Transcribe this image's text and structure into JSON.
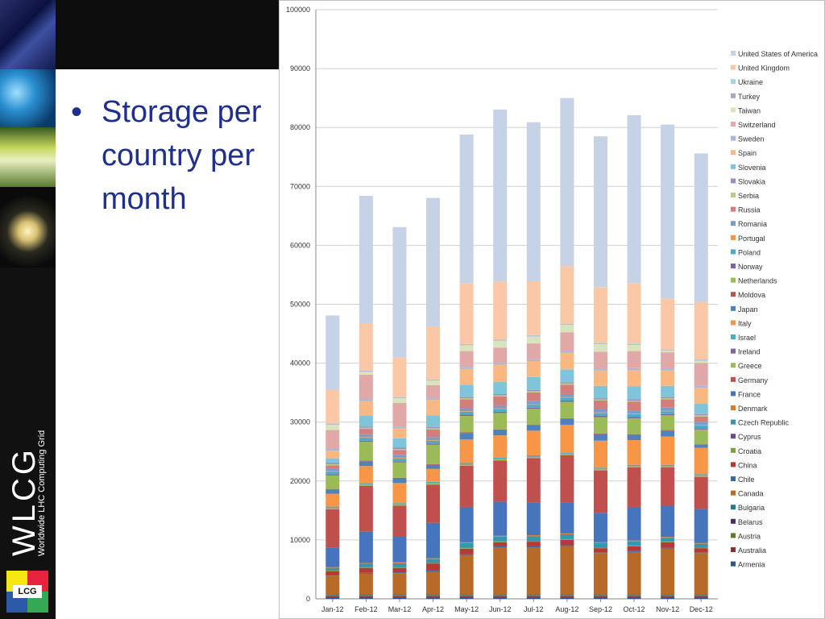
{
  "slide": {
    "bullet": "•",
    "title_lines": [
      "Storage per",
      "country per",
      "month"
    ]
  },
  "branding": {
    "wlcg": "WLCG",
    "wlcg_sub": "Worldwide LHC Computing Grid",
    "lcg": "LCG"
  },
  "chart_data": {
    "type": "bar",
    "stacked": true,
    "categories": [
      "Jan-12",
      "Feb-12",
      "Mar-12",
      "Apr-12",
      "May-12",
      "Jun-12",
      "Jul-12",
      "Aug-12",
      "Sep-12",
      "Oct-12",
      "Nov-12",
      "Dec-12"
    ],
    "yticks": [
      0,
      10000,
      20000,
      30000,
      40000,
      50000,
      60000,
      70000,
      80000,
      90000,
      100000
    ],
    "ylim": [
      0,
      100000
    ],
    "grid": true,
    "legend_position": "right",
    "series": [
      {
        "name": "Armenia",
        "color": "#2e5687",
        "values": [
          300,
          300,
          300,
          300,
          300,
          300,
          300,
          300,
          300,
          300,
          300,
          300
        ]
      },
      {
        "name": "Australia",
        "color": "#8c2e2c",
        "values": [
          200,
          200,
          200,
          200,
          200,
          200,
          200,
          200,
          200,
          200,
          200,
          200
        ]
      },
      {
        "name": "Austria",
        "color": "#5f7a2b",
        "values": [
          100,
          100,
          100,
          100,
          100,
          100,
          100,
          100,
          100,
          100,
          100,
          100
        ]
      },
      {
        "name": "Belarus",
        "color": "#4a2f66",
        "values": [
          50,
          50,
          50,
          50,
          50,
          50,
          50,
          50,
          50,
          50,
          50,
          50
        ]
      },
      {
        "name": "Bulgaria",
        "color": "#257a8c",
        "values": [
          100,
          100,
          100,
          100,
          100,
          100,
          100,
          100,
          100,
          100,
          100,
          100
        ]
      },
      {
        "name": "Canada",
        "color": "#b86a28",
        "values": [
          3200,
          3500,
          3600,
          3900,
          6700,
          8000,
          8000,
          8200,
          7000,
          7200,
          7800,
          7000
        ]
      },
      {
        "name": "Chile",
        "color": "#3a6aa6",
        "values": [
          150,
          150,
          150,
          150,
          150,
          150,
          150,
          150,
          150,
          150,
          150,
          150
        ]
      },
      {
        "name": "China",
        "color": "#b53a35",
        "values": [
          600,
          800,
          700,
          1200,
          900,
          700,
          800,
          900,
          700,
          800,
          900,
          700
        ]
      },
      {
        "name": "Croatia",
        "color": "#7fa23a",
        "values": [
          100,
          100,
          100,
          100,
          100,
          100,
          100,
          100,
          100,
          100,
          100,
          100
        ]
      },
      {
        "name": "Cyprus",
        "color": "#6a4a91",
        "values": [
          50,
          50,
          50,
          50,
          50,
          50,
          50,
          50,
          50,
          50,
          50,
          50
        ]
      },
      {
        "name": "Czech Republic",
        "color": "#3497ae",
        "values": [
          400,
          600,
          700,
          600,
          800,
          800,
          800,
          800,
          700,
          700,
          600,
          600
        ]
      },
      {
        "name": "Denmark",
        "color": "#e07a2a",
        "values": [
          150,
          150,
          150,
          150,
          150,
          150,
          150,
          150,
          150,
          150,
          150,
          150
        ]
      },
      {
        "name": "France",
        "color": "#4675bd",
        "values": [
          3300,
          5300,
          4400,
          6000,
          6000,
          5800,
          5600,
          5300,
          5000,
          5700,
          5300,
          5700
        ]
      },
      {
        "name": "Germany",
        "color": "#c0504d",
        "values": [
          6500,
          7800,
          5200,
          6500,
          7000,
          7000,
          7500,
          8000,
          7200,
          6700,
          6500,
          5500
        ]
      },
      {
        "name": "Greece",
        "color": "#9bbb59",
        "values": [
          200,
          200,
          200,
          200,
          200,
          200,
          200,
          200,
          200,
          200,
          200,
          200
        ]
      },
      {
        "name": "Ireland",
        "color": "#8064a2",
        "values": [
          50,
          50,
          50,
          50,
          50,
          50,
          50,
          50,
          50,
          50,
          50,
          50
        ]
      },
      {
        "name": "Israel",
        "color": "#4bacc6",
        "values": [
          200,
          200,
          200,
          200,
          200,
          200,
          200,
          200,
          200,
          200,
          200,
          200
        ]
      },
      {
        "name": "Italy",
        "color": "#f79646",
        "values": [
          2200,
          2900,
          3400,
          2200,
          4000,
          3800,
          4200,
          4700,
          4600,
          4200,
          4800,
          4500
        ]
      },
      {
        "name": "Japan",
        "color": "#4f81bd",
        "values": [
          700,
          800,
          800,
          700,
          1100,
          900,
          900,
          1000,
          1100,
          900,
          1000,
          500
        ]
      },
      {
        "name": "Moldova",
        "color": "#c0504d",
        "values": [
          100,
          100,
          100,
          100,
          100,
          100,
          100,
          100,
          100,
          100,
          100,
          100
        ]
      },
      {
        "name": "Netherlands",
        "color": "#9bbb59",
        "values": [
          2300,
          3200,
          2600,
          3300,
          2800,
          2800,
          2700,
          2800,
          2800,
          2700,
          2500,
          2500
        ]
      },
      {
        "name": "Norway",
        "color": "#8064a2",
        "values": [
          200,
          200,
          200,
          200,
          200,
          200,
          200,
          200,
          200,
          200,
          200,
          200
        ]
      },
      {
        "name": "Poland",
        "color": "#4bacc6",
        "values": [
          400,
          500,
          500,
          500,
          500,
          500,
          500,
          500,
          500,
          500,
          500,
          500
        ]
      },
      {
        "name": "Portugal",
        "color": "#f79646",
        "values": [
          100,
          100,
          100,
          100,
          100,
          100,
          100,
          100,
          100,
          100,
          100,
          100
        ]
      },
      {
        "name": "Romania",
        "color": "#7a9ccc",
        "values": [
          500,
          500,
          500,
          500,
          500,
          500,
          500,
          500,
          500,
          500,
          500,
          500
        ]
      },
      {
        "name": "Russia",
        "color": "#d47e7c",
        "values": [
          500,
          900,
          800,
          1300,
          1500,
          1500,
          1500,
          1600,
          1500,
          1500,
          1400,
          900
        ]
      },
      {
        "name": "Serbia",
        "color": "#b5cd85",
        "values": [
          200,
          200,
          200,
          200,
          200,
          200,
          200,
          200,
          200,
          200,
          200,
          200
        ]
      },
      {
        "name": "Slovakia",
        "color": "#9f8bbd",
        "values": [
          200,
          200,
          200,
          200,
          200,
          200,
          200,
          200,
          200,
          200,
          200,
          200
        ]
      },
      {
        "name": "Slovenia",
        "color": "#7fc4d8",
        "values": [
          800,
          1800,
          1600,
          2000,
          2100,
          2100,
          2200,
          2200,
          2100,
          2200,
          1900,
          1800
        ]
      },
      {
        "name": "Spain",
        "color": "#f9b782",
        "values": [
          1300,
          2500,
          1700,
          2600,
          2700,
          2900,
          2700,
          2800,
          2600,
          2800,
          2600,
          2700
        ]
      },
      {
        "name": "Sweden",
        "color": "#a5b9dc",
        "values": [
          300,
          300,
          300,
          300,
          300,
          300,
          300,
          300,
          300,
          300,
          300,
          300
        ]
      },
      {
        "name": "Switzerland",
        "color": "#e0a8a6",
        "values": [
          3200,
          4200,
          4000,
          2200,
          2700,
          2600,
          2700,
          3200,
          2900,
          2900,
          2800,
          3900
        ]
      },
      {
        "name": "Taiwan",
        "color": "#d7e4bd",
        "values": [
          900,
          500,
          800,
          800,
          1000,
          1200,
          1200,
          1300,
          1300,
          1100,
          300,
          400
        ]
      },
      {
        "name": "Turkey",
        "color": "#b3a2c7",
        "values": [
          100,
          100,
          100,
          100,
          100,
          100,
          100,
          100,
          100,
          100,
          100,
          100
        ]
      },
      {
        "name": "Ukraine",
        "color": "#a9d4e2",
        "values": [
          100,
          100,
          100,
          100,
          100,
          100,
          100,
          100,
          100,
          100,
          100,
          100
        ]
      },
      {
        "name": "United Kingdom",
        "color": "#fac8a6",
        "values": [
          5750,
          8050,
          6750,
          9000,
          10350,
          9800,
          9150,
          9750,
          9450,
          10250,
          8650,
          9750
        ]
      },
      {
        "name": "United States of America",
        "color": "#c6d2e6",
        "values": [
          12600,
          21600,
          22100,
          21800,
          25200,
          29200,
          27000,
          28500,
          25600,
          28500,
          29500,
          25200
        ]
      }
    ]
  }
}
